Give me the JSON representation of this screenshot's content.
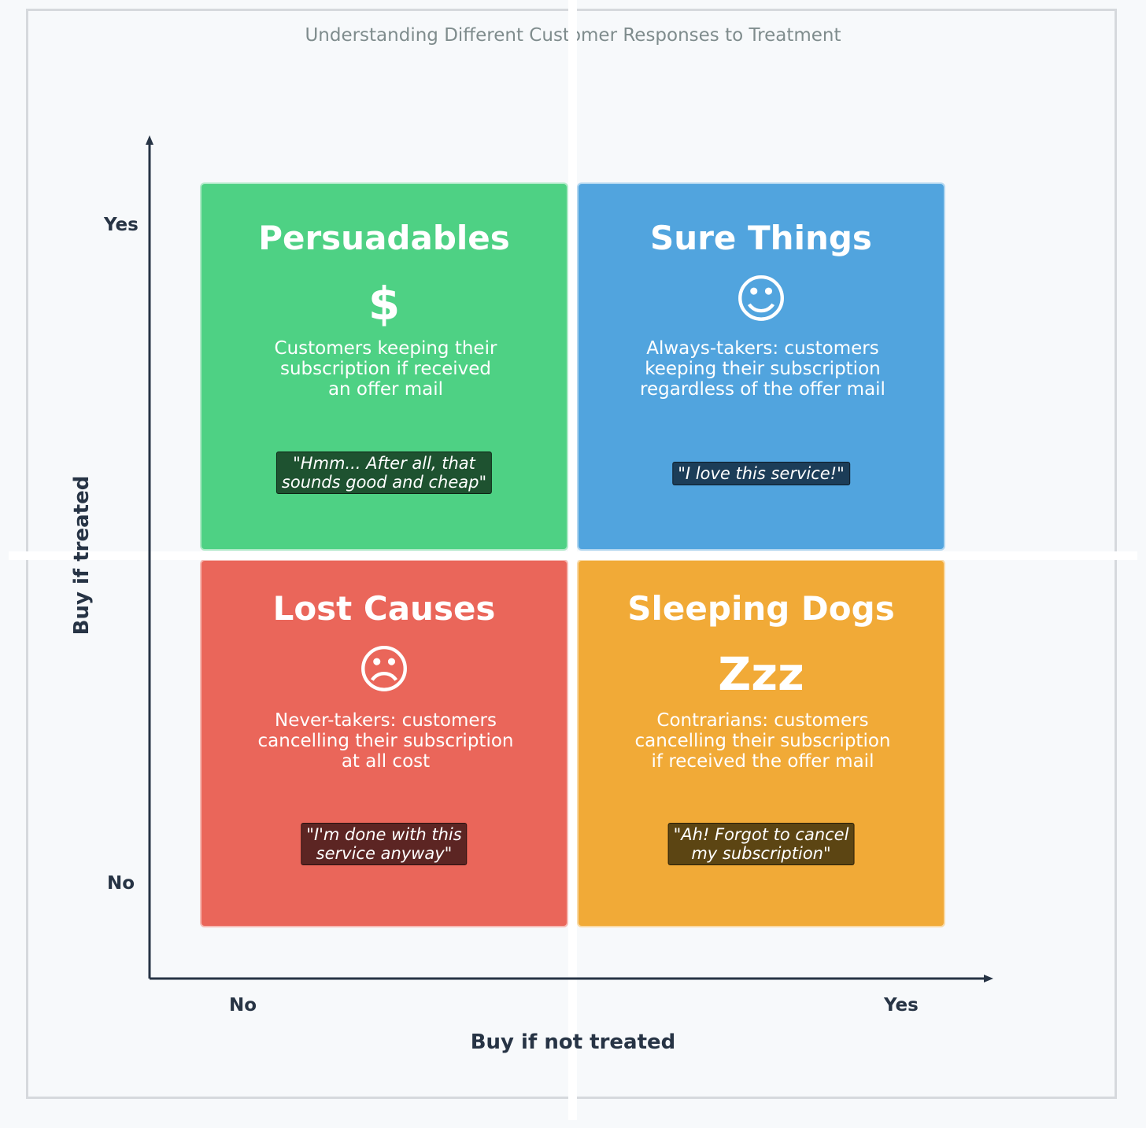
{
  "diagram": {
    "subtitle": "Understanding Different Customer Responses to Treatment",
    "y_axis": {
      "title": "Buy if treated",
      "tick_yes": "Yes",
      "tick_no": "No"
    },
    "x_axis": {
      "title": "Buy if not treated",
      "tick_no": "No",
      "tick_yes": "Yes"
    },
    "quadrants": {
      "persuadables": {
        "title": "Persuadables",
        "icon": "$",
        "icon_name": "dollar-icon",
        "color": "#4ed184",
        "description": [
          "Customers keeping their",
          "subscription if received",
          "an offer mail"
        ],
        "quote": [
          "\"Hmm... After all, that",
          "sounds good and cheap\""
        ]
      },
      "sure_things": {
        "title": "Sure Things",
        "icon": "☺",
        "icon_name": "smiley-face-icon",
        "color": "#51a4de",
        "description": [
          "Always-takers: customers",
          "keeping their subscription",
          "regardless of the offer mail"
        ],
        "quote": [
          "\"I love this service!\""
        ]
      },
      "lost_causes": {
        "title": "Lost Causes",
        "icon": "☹",
        "icon_name": "sad-face-icon",
        "color": "#ea665a",
        "description": [
          "Never-takers: customers",
          "cancelling their subscription",
          "at all cost"
        ],
        "quote": [
          "\"I'm done with this",
          "service anyway\""
        ]
      },
      "sleeping_dogs": {
        "title": "Sleeping Dogs",
        "icon": "Zzz",
        "icon_name": "sleep-zzz-icon",
        "color": "#f1aa37",
        "description": [
          "Contrarians: customers",
          "cancelling their subscription",
          "if received the offer mail"
        ],
        "quote": [
          "\"Ah! Forgot to cancel",
          "my subscription\""
        ]
      }
    }
  }
}
